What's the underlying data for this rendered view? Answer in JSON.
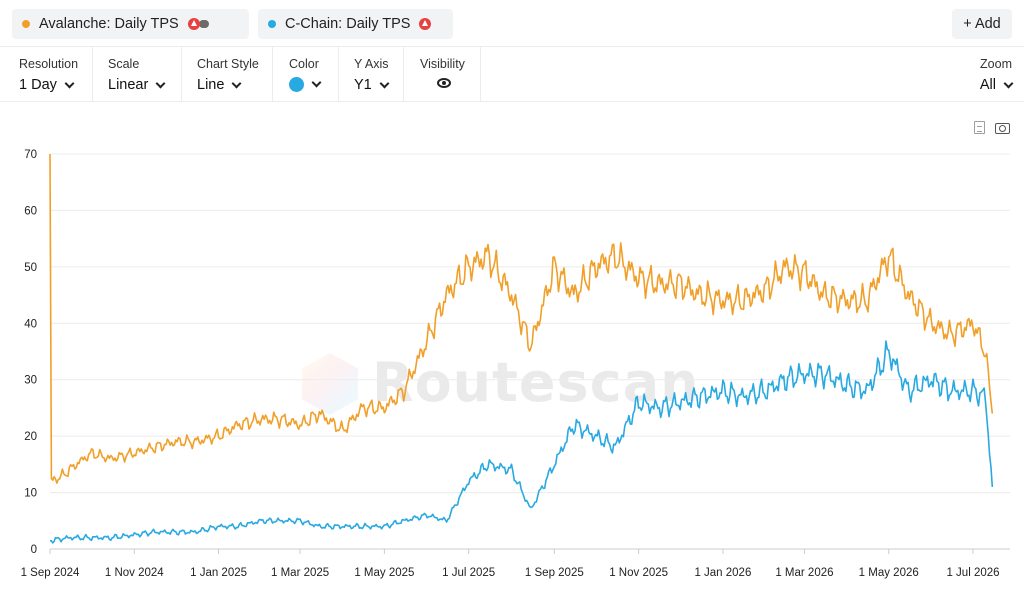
{
  "series_bar": {
    "series": [
      {
        "label": "Avalanche: Daily TPS",
        "color": "#f0a02a",
        "token_icon": "avalanche-logo-icon"
      },
      {
        "label": "C-Chain: Daily TPS",
        "color": "#29a9e1",
        "token_icon": "avalanche-logo-icon"
      }
    ],
    "add_label": "+ Add"
  },
  "controls": {
    "resolution": {
      "label": "Resolution",
      "value": "1 Day"
    },
    "scale": {
      "label": "Scale",
      "value": "Linear"
    },
    "chart_style": {
      "label": "Chart Style",
      "value": "Line"
    },
    "color": {
      "label": "Color",
      "value": "#29a9e1"
    },
    "y_axis": {
      "label": "Y Axis",
      "value": "Y1"
    },
    "visibility": {
      "label": "Visibility",
      "icon": "eye-icon"
    },
    "zoom": {
      "label": "Zoom",
      "value": "All"
    }
  },
  "toolbar_icons": [
    "csv-download-icon",
    "camera-icon"
  ],
  "watermark": {
    "text": "Routescan"
  },
  "chart_data": {
    "type": "line",
    "title": "",
    "xlabel": "",
    "ylabel": "",
    "x_ticks": [
      "1 Sep 2024",
      "1 Nov 2024",
      "1 Jan 2025",
      "1 Mar 2025",
      "1 May 2025",
      "1 Jul 2025",
      "1 Sep 2025",
      "1 Nov 2025",
      "1 Jan 2026",
      "1 Mar 2026",
      "1 May 2026",
      "1 Jul 2026"
    ],
    "y_ticks": [
      0,
      10,
      20,
      30,
      40,
      50,
      60,
      70
    ],
    "ylim": [
      0,
      70
    ],
    "xlim": [
      "2024-09-01",
      "2026-07-20"
    ],
    "grid": "horizontal",
    "series": [
      {
        "name": "Avalanche: Daily TPS",
        "color": "#f0a02a",
        "points": [
          [
            "2024-09-01",
            70
          ],
          [
            "2024-09-02",
            12
          ],
          [
            "2024-09-10",
            13
          ],
          [
            "2024-09-20",
            15
          ],
          [
            "2024-10-01",
            17
          ],
          [
            "2024-10-15",
            16
          ],
          [
            "2024-11-01",
            17
          ],
          [
            "2024-11-15",
            18
          ],
          [
            "2024-12-01",
            19
          ],
          [
            "2024-12-15",
            19
          ],
          [
            "2025-01-01",
            20
          ],
          [
            "2025-01-15",
            22
          ],
          [
            "2025-02-01",
            23
          ],
          [
            "2025-02-15",
            23
          ],
          [
            "2025-03-01",
            22
          ],
          [
            "2025-03-15",
            24
          ],
          [
            "2025-04-01",
            21
          ],
          [
            "2025-04-15",
            25
          ],
          [
            "2025-05-01",
            25
          ],
          [
            "2025-05-15",
            28
          ],
          [
            "2025-06-01",
            37
          ],
          [
            "2025-06-15",
            45
          ],
          [
            "2025-07-01",
            50
          ],
          [
            "2025-07-15",
            52
          ],
          [
            "2025-08-01",
            45
          ],
          [
            "2025-08-15",
            36
          ],
          [
            "2025-09-01",
            50
          ],
          [
            "2025-09-15",
            45
          ],
          [
            "2025-10-01",
            50
          ],
          [
            "2025-10-15",
            52
          ],
          [
            "2025-11-01",
            48
          ],
          [
            "2025-11-15",
            47
          ],
          [
            "2025-12-01",
            47
          ],
          [
            "2025-12-15",
            45
          ],
          [
            "2026-01-01",
            44
          ],
          [
            "2026-01-15",
            44
          ],
          [
            "2026-02-01",
            46
          ],
          [
            "2026-02-15",
            50
          ],
          [
            "2026-03-01",
            49
          ],
          [
            "2026-03-15",
            45
          ],
          [
            "2026-04-01",
            44
          ],
          [
            "2026-04-15",
            44
          ],
          [
            "2026-05-01",
            52
          ],
          [
            "2026-05-15",
            45
          ],
          [
            "2026-06-01",
            40
          ],
          [
            "2026-06-15",
            38
          ],
          [
            "2026-07-01",
            40
          ],
          [
            "2026-07-10",
            35
          ],
          [
            "2026-07-15",
            24
          ]
        ]
      },
      {
        "name": "C-Chain: Daily TPS",
        "color": "#29a9e1",
        "points": [
          [
            "2024-09-01",
            1.5
          ],
          [
            "2024-09-15",
            2
          ],
          [
            "2024-10-01",
            2
          ],
          [
            "2024-10-15",
            2
          ],
          [
            "2024-11-01",
            2.5
          ],
          [
            "2024-11-15",
            3
          ],
          [
            "2024-12-01",
            3
          ],
          [
            "2024-12-15",
            3
          ],
          [
            "2025-01-01",
            4
          ],
          [
            "2025-01-15",
            4
          ],
          [
            "2025-02-01",
            5
          ],
          [
            "2025-02-15",
            5
          ],
          [
            "2025-03-01",
            5
          ],
          [
            "2025-03-15",
            4
          ],
          [
            "2025-04-01",
            4
          ],
          [
            "2025-04-15",
            4
          ],
          [
            "2025-05-01",
            4
          ],
          [
            "2025-05-15",
            5
          ],
          [
            "2025-06-01",
            6
          ],
          [
            "2025-06-15",
            5
          ],
          [
            "2025-07-01",
            12
          ],
          [
            "2025-07-15",
            15
          ],
          [
            "2025-08-01",
            14
          ],
          [
            "2025-08-15",
            7
          ],
          [
            "2025-09-01",
            15
          ],
          [
            "2025-09-15",
            22
          ],
          [
            "2025-10-01",
            20
          ],
          [
            "2025-10-15",
            18
          ],
          [
            "2025-11-01",
            26
          ],
          [
            "2025-11-15",
            25
          ],
          [
            "2025-12-01",
            26
          ],
          [
            "2025-12-15",
            27
          ],
          [
            "2026-01-01",
            28
          ],
          [
            "2026-01-15",
            27
          ],
          [
            "2026-02-01",
            28
          ],
          [
            "2026-02-15",
            30
          ],
          [
            "2026-03-01",
            31
          ],
          [
            "2026-03-15",
            31
          ],
          [
            "2026-04-01",
            29
          ],
          [
            "2026-04-15",
            28
          ],
          [
            "2026-05-01",
            35
          ],
          [
            "2026-05-15",
            28
          ],
          [
            "2026-06-01",
            30
          ],
          [
            "2026-06-15",
            28
          ],
          [
            "2026-07-01",
            28
          ],
          [
            "2026-07-10",
            27
          ],
          [
            "2026-07-15",
            11
          ]
        ]
      }
    ]
  }
}
